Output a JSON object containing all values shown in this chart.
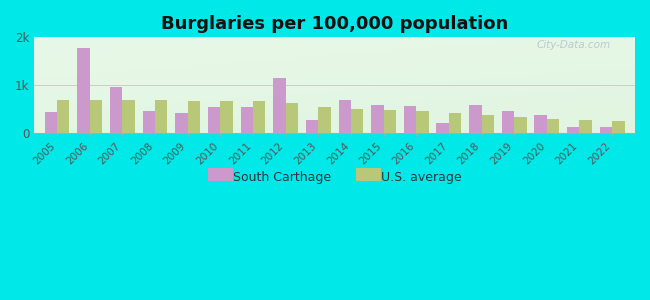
{
  "title": "Burglaries per 100,000 population",
  "years": [
    2005,
    2006,
    2007,
    2008,
    2009,
    2010,
    2011,
    2012,
    2013,
    2014,
    2015,
    2016,
    2017,
    2018,
    2019,
    2020,
    2021,
    2022
  ],
  "south_carthage": [
    440,
    1780,
    970,
    450,
    420,
    540,
    540,
    1150,
    270,
    680,
    580,
    560,
    200,
    580,
    470,
    380,
    120,
    130
  ],
  "us_average": [
    680,
    680,
    700,
    690,
    660,
    660,
    660,
    620,
    540,
    510,
    480,
    460,
    420,
    370,
    340,
    290,
    270,
    250
  ],
  "south_carthage_color": "#cc99cc",
  "us_average_color": "#b8c878",
  "background_outer": "#00e8e8",
  "background_plot": "#e8f5e8",
  "ylim": [
    0,
    2000
  ],
  "ytick_labels": [
    "0",
    "1k",
    "2k"
  ],
  "title_fontsize": 13,
  "legend_labels": [
    "South Carthage",
    "U.S. average"
  ],
  "bar_width": 0.38
}
